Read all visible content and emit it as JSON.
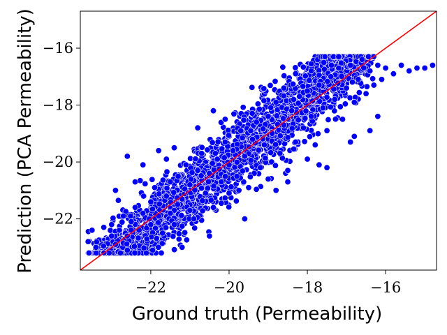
{
  "chart_data": {
    "type": "scatter",
    "title": "",
    "xlabel": "Ground truth (Permeability)",
    "ylabel": "Prediction (PCA Permeability)",
    "xlim": [
      -23.8,
      -14.7
    ],
    "ylim": [
      -23.8,
      -14.7
    ],
    "x_ticks": [
      -22,
      -20,
      -18,
      -16
    ],
    "y_ticks": [
      -22,
      -20,
      -18,
      -16
    ],
    "x_tick_labels": [
      "−22",
      "−20",
      "−18",
      "−16"
    ],
    "y_tick_labels": [
      "−22",
      "−20",
      "−18",
      "−16"
    ],
    "grid": false,
    "legend": "none",
    "point_color": "#0000ff",
    "point_edge_color": "#ffffff",
    "reference_line": {
      "type": "y=x",
      "color": "#ff0000"
    },
    "series": [
      {
        "values_description_note": null,
        "points": [
          [
            -23.6,
            -22.8
          ],
          [
            -23.5,
            -22.4
          ],
          [
            -23.4,
            -23.0
          ],
          [
            -23.2,
            -22.3
          ],
          [
            -23.0,
            -22.6
          ],
          [
            -23.0,
            -22.2
          ],
          [
            -22.9,
            -22.9
          ],
          [
            -22.8,
            -22.4
          ],
          [
            -22.7,
            -21.9
          ],
          [
            -22.6,
            -22.6
          ],
          [
            -22.6,
            -23.1
          ],
          [
            -22.5,
            -22.1
          ],
          [
            -22.4,
            -21.6
          ],
          [
            -22.3,
            -22.4
          ],
          [
            -22.2,
            -21.8
          ],
          [
            -22.1,
            -22.7
          ],
          [
            -22.0,
            -21.4
          ],
          [
            -22.0,
            -22.2
          ],
          [
            -21.9,
            -20.9
          ],
          [
            -21.8,
            -21.9
          ],
          [
            -21.7,
            -22.5
          ],
          [
            -21.6,
            -21.2
          ],
          [
            -21.5,
            -20.7
          ],
          [
            -21.5,
            -21.8
          ],
          [
            -21.4,
            -22.2
          ],
          [
            -21.3,
            -20.5
          ],
          [
            -21.2,
            -21.3
          ],
          [
            -21.1,
            -20.1
          ],
          [
            -21.0,
            -21.7
          ],
          [
            -21.0,
            -20.8
          ],
          [
            -20.9,
            -22.0
          ],
          [
            -20.8,
            -20.3
          ],
          [
            -20.7,
            -19.7
          ],
          [
            -20.6,
            -21.1
          ],
          [
            -20.5,
            -20.4
          ],
          [
            -20.4,
            -21.6
          ],
          [
            -20.3,
            -19.9
          ],
          [
            -20.2,
            -20.7
          ],
          [
            -20.1,
            -19.3
          ],
          [
            -20.0,
            -20.1
          ],
          [
            -20.0,
            -21.1
          ],
          [
            -19.9,
            -19.6
          ],
          [
            -19.8,
            -20.5
          ],
          [
            -19.7,
            -18.9
          ],
          [
            -19.6,
            -19.8
          ],
          [
            -19.5,
            -20.9
          ],
          [
            -19.4,
            -19.2
          ],
          [
            -19.3,
            -18.6
          ],
          [
            -19.2,
            -20.2
          ],
          [
            -19.1,
            -19.4
          ],
          [
            -19.0,
            -18.4
          ],
          [
            -19.0,
            -20.6
          ],
          [
            -18.9,
            -19.0
          ],
          [
            -18.8,
            -17.9
          ],
          [
            -18.7,
            -19.7
          ],
          [
            -18.6,
            -18.7
          ],
          [
            -18.5,
            -20.3
          ],
          [
            -18.4,
            -18.2
          ],
          [
            -18.3,
            -19.3
          ],
          [
            -18.2,
            -17.7
          ],
          [
            -18.1,
            -18.8
          ],
          [
            -18.0,
            -19.9
          ],
          [
            -18.0,
            -17.5
          ],
          [
            -17.9,
            -18.4
          ],
          [
            -17.8,
            -19.4
          ],
          [
            -17.7,
            -17.3
          ],
          [
            -17.6,
            -18.1
          ],
          [
            -17.5,
            -18.9
          ],
          [
            -17.4,
            -17.0
          ],
          [
            -17.3,
            -17.8
          ],
          [
            -17.2,
            -16.7
          ],
          [
            -17.1,
            -18.5
          ],
          [
            -17.0,
            -17.4
          ],
          [
            -16.9,
            -16.6
          ],
          [
            -16.8,
            -17.9
          ],
          [
            -16.7,
            -17.1
          ],
          [
            -16.6,
            -16.4
          ],
          [
            -16.5,
            -17.6
          ],
          [
            -16.4,
            -16.8
          ],
          [
            -16.3,
            -17.3
          ],
          [
            -16.2,
            -16.6
          ],
          [
            -16.1,
            -17.1
          ],
          [
            -16.0,
            -16.7
          ],
          [
            -15.8,
            -16.9
          ],
          [
            -15.6,
            -16.6
          ],
          [
            -15.4,
            -16.8
          ],
          [
            -15.2,
            -16.7
          ],
          [
            -15.0,
            -16.7
          ],
          [
            -14.8,
            -16.6
          ],
          [
            -22.6,
            -19.8
          ],
          [
            -22.2,
            -20.1
          ],
          [
            -21.8,
            -19.6
          ],
          [
            -21.4,
            -19.5
          ],
          [
            -20.8,
            -18.8
          ],
          [
            -20.4,
            -18.2
          ],
          [
            -19.6,
            -22.0
          ],
          [
            -18.8,
            -21.0
          ],
          [
            -18.5,
            -20.7
          ],
          [
            -17.7,
            -20.1
          ],
          [
            -17.5,
            -20.2
          ],
          [
            -16.9,
            -19.3
          ],
          [
            -16.8,
            -19.1
          ],
          [
            -16.4,
            -18.9
          ],
          [
            -16.2,
            -18.4
          ],
          [
            -21.2,
            -23.0
          ],
          [
            -20.5,
            -22.6
          ],
          [
            -22.9,
            -21.0
          ],
          [
            -22.4,
            -20.7
          ],
          [
            -21.6,
            -19.9
          ],
          [
            -17.2,
            -16.3
          ],
          [
            -17.9,
            -16.8
          ],
          [
            -18.6,
            -17.4
          ],
          [
            -20.1,
            -18.5
          ]
        ],
        "name": null
      }
    ]
  }
}
